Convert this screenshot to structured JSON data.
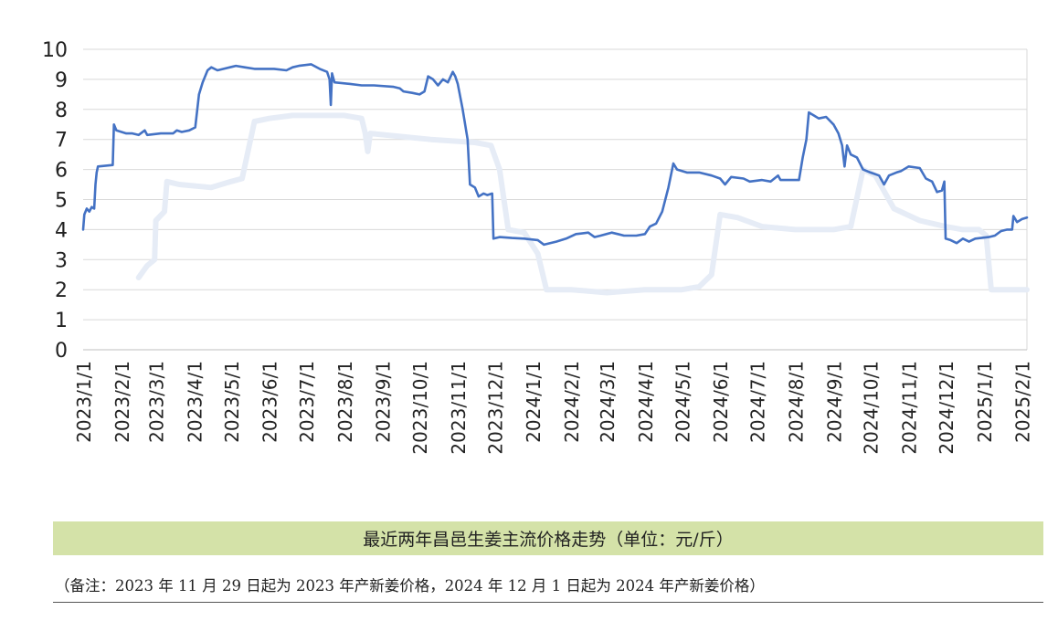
{
  "chart_data": {
    "type": "line",
    "title": "最近两年昌邑生姜主流价格走势（单位：元/斤）",
    "xlabel": "",
    "ylabel": "",
    "ylim": [
      0,
      10
    ],
    "yticks": [
      "0",
      "1",
      "2",
      "3",
      "4",
      "5",
      "6",
      "7",
      "8",
      "9",
      "10"
    ],
    "x_range": [
      "2023-01-01",
      "2025-02-05"
    ],
    "x_tick_labels": [
      "2023/1/1",
      "2023/2/1",
      "2023/3/1",
      "2023/4/1",
      "2023/5/1",
      "2023/6/1",
      "2023/7/1",
      "2023/8/1",
      "2023/9/1",
      "2023/10/1",
      "2023/11/1",
      "2023/12/1",
      "2024/1/1",
      "2024/2/1",
      "2024/3/1",
      "2024/4/1",
      "2024/5/1",
      "2024/6/1",
      "2024/7/1",
      "2024/8/1",
      "2024/9/1",
      "2024/10/1",
      "2024/11/1",
      "2024/12/1",
      "2025/1/1",
      "2025/2/1"
    ],
    "x_tick_dates": [
      "2023-01-01",
      "2023-02-01",
      "2023-03-01",
      "2023-04-01",
      "2023-05-01",
      "2023-06-01",
      "2023-07-01",
      "2023-08-01",
      "2023-09-01",
      "2023-10-01",
      "2023-11-01",
      "2023-12-01",
      "2024-01-01",
      "2024-02-01",
      "2024-03-01",
      "2024-04-01",
      "2024-05-01",
      "2024-06-01",
      "2024-07-01",
      "2024-08-01",
      "2024-09-01",
      "2024-10-01",
      "2024-11-01",
      "2024-12-01",
      "2025-01-01",
      "2025-02-01"
    ],
    "grid": true,
    "legend": "none",
    "colors": {
      "main": "#4472c4",
      "faded": "#e6ecf6",
      "grid": "#d9d9d9"
    },
    "series": [
      {
        "points": [
          [
            "2023-01-01",
            4.0
          ],
          [
            "2023-01-02",
            4.5
          ],
          [
            "2023-01-04",
            4.7
          ],
          [
            "2023-01-06",
            4.6
          ],
          [
            "2023-01-08",
            4.75
          ],
          [
            "2023-01-10",
            4.7
          ],
          [
            "2023-01-11",
            5.5
          ],
          [
            "2023-01-12",
            5.9
          ],
          [
            "2023-01-13",
            6.1
          ],
          [
            "2023-01-25",
            6.15
          ],
          [
            "2023-01-26",
            7.5
          ],
          [
            "2023-01-28",
            7.3
          ],
          [
            "2023-02-05",
            7.2
          ],
          [
            "2023-02-10",
            7.2
          ],
          [
            "2023-02-15",
            7.15
          ],
          [
            "2023-02-20",
            7.3
          ],
          [
            "2023-02-22",
            7.15
          ],
          [
            "2023-03-05",
            7.2
          ],
          [
            "2023-03-15",
            7.2
          ],
          [
            "2023-03-18",
            7.3
          ],
          [
            "2023-03-22",
            7.25
          ],
          [
            "2023-03-28",
            7.3
          ],
          [
            "2023-04-02",
            7.4
          ],
          [
            "2023-04-05",
            8.5
          ],
          [
            "2023-04-08",
            8.9
          ],
          [
            "2023-04-12",
            9.3
          ],
          [
            "2023-04-15",
            9.4
          ],
          [
            "2023-04-20",
            9.3
          ],
          [
            "2023-04-25",
            9.35
          ],
          [
            "2023-05-05",
            9.45
          ],
          [
            "2023-05-12",
            9.4
          ],
          [
            "2023-05-20",
            9.35
          ],
          [
            "2023-06-05",
            9.35
          ],
          [
            "2023-06-15",
            9.3
          ],
          [
            "2023-06-20",
            9.4
          ],
          [
            "2023-06-25",
            9.45
          ],
          [
            "2023-07-05",
            9.5
          ],
          [
            "2023-07-12",
            9.35
          ],
          [
            "2023-07-18",
            9.25
          ],
          [
            "2023-07-20",
            9.0
          ],
          [
            "2023-07-21",
            8.15
          ],
          [
            "2023-07-22",
            9.2
          ],
          [
            "2023-07-24",
            8.9
          ],
          [
            "2023-08-05",
            8.85
          ],
          [
            "2023-08-15",
            8.8
          ],
          [
            "2023-08-25",
            8.8
          ],
          [
            "2023-09-10",
            8.75
          ],
          [
            "2023-09-15",
            8.7
          ],
          [
            "2023-09-18",
            8.6
          ],
          [
            "2023-09-25",
            8.55
          ],
          [
            "2023-10-01",
            8.5
          ],
          [
            "2023-10-05",
            8.6
          ],
          [
            "2023-10-08",
            9.1
          ],
          [
            "2023-10-12",
            9.0
          ],
          [
            "2023-10-16",
            8.8
          ],
          [
            "2023-10-20",
            9.0
          ],
          [
            "2023-10-24",
            8.9
          ],
          [
            "2023-10-28",
            9.25
          ],
          [
            "2023-10-30",
            9.1
          ],
          [
            "2023-11-01",
            8.85
          ],
          [
            "2023-11-05",
            8.0
          ],
          [
            "2023-11-09",
            7.0
          ],
          [
            "2023-11-11",
            5.5
          ],
          [
            "2023-11-15",
            5.4
          ],
          [
            "2023-11-18",
            5.1
          ],
          [
            "2023-11-22",
            5.2
          ],
          [
            "2023-11-25",
            5.15
          ],
          [
            "2023-11-29",
            5.2
          ],
          [
            "2023-11-30",
            3.7
          ],
          [
            "2023-12-05",
            3.75
          ],
          [
            "2023-12-15",
            3.72
          ],
          [
            "2023-12-25",
            3.7
          ],
          [
            "2024-01-05",
            3.65
          ],
          [
            "2024-01-10",
            3.5
          ],
          [
            "2024-01-20",
            3.6
          ],
          [
            "2024-01-28",
            3.7
          ],
          [
            "2024-02-05",
            3.85
          ],
          [
            "2024-02-15",
            3.9
          ],
          [
            "2024-02-20",
            3.75
          ],
          [
            "2024-02-25",
            3.8
          ],
          [
            "2024-03-05",
            3.9
          ],
          [
            "2024-03-10",
            3.85
          ],
          [
            "2024-03-15",
            3.8
          ],
          [
            "2024-03-25",
            3.8
          ],
          [
            "2024-04-01",
            3.85
          ],
          [
            "2024-04-05",
            4.1
          ],
          [
            "2024-04-10",
            4.2
          ],
          [
            "2024-04-15",
            4.6
          ],
          [
            "2024-04-20",
            5.4
          ],
          [
            "2024-04-24",
            6.2
          ],
          [
            "2024-04-27",
            6.0
          ],
          [
            "2024-05-05",
            5.9
          ],
          [
            "2024-05-15",
            5.9
          ],
          [
            "2024-05-25",
            5.8
          ],
          [
            "2024-06-01",
            5.7
          ],
          [
            "2024-06-05",
            5.5
          ],
          [
            "2024-06-10",
            5.75
          ],
          [
            "2024-06-20",
            5.7
          ],
          [
            "2024-06-25",
            5.6
          ],
          [
            "2024-07-05",
            5.65
          ],
          [
            "2024-07-12",
            5.6
          ],
          [
            "2024-07-18",
            5.8
          ],
          [
            "2024-07-20",
            5.65
          ],
          [
            "2024-07-30",
            5.65
          ],
          [
            "2024-08-04",
            5.65
          ],
          [
            "2024-08-07",
            6.4
          ],
          [
            "2024-08-10",
            7.0
          ],
          [
            "2024-08-12",
            7.9
          ],
          [
            "2024-08-16",
            7.8
          ],
          [
            "2024-08-20",
            7.7
          ],
          [
            "2024-08-26",
            7.75
          ],
          [
            "2024-09-01",
            7.5
          ],
          [
            "2024-09-05",
            7.2
          ],
          [
            "2024-09-08",
            6.8
          ],
          [
            "2024-09-10",
            6.1
          ],
          [
            "2024-09-12",
            6.8
          ],
          [
            "2024-09-15",
            6.5
          ],
          [
            "2024-09-20",
            6.4
          ],
          [
            "2024-09-25",
            6.0
          ],
          [
            "2024-10-01",
            5.9
          ],
          [
            "2024-10-08",
            5.8
          ],
          [
            "2024-10-12",
            5.5
          ],
          [
            "2024-10-16",
            5.8
          ],
          [
            "2024-10-22",
            5.9
          ],
          [
            "2024-10-26",
            5.95
          ],
          [
            "2024-11-01",
            6.1
          ],
          [
            "2024-11-10",
            6.05
          ],
          [
            "2024-11-15",
            5.7
          ],
          [
            "2024-11-20",
            5.6
          ],
          [
            "2024-11-24",
            5.25
          ],
          [
            "2024-11-28",
            5.3
          ],
          [
            "2024-11-30",
            5.6
          ],
          [
            "2024-12-01",
            3.7
          ],
          [
            "2024-12-05",
            3.65
          ],
          [
            "2024-12-10",
            3.55
          ],
          [
            "2024-12-15",
            3.7
          ],
          [
            "2024-12-20",
            3.6
          ],
          [
            "2024-12-25",
            3.7
          ],
          [
            "2025-01-05",
            3.75
          ],
          [
            "2025-01-10",
            3.8
          ],
          [
            "2025-01-15",
            3.95
          ],
          [
            "2025-01-20",
            4.0
          ],
          [
            "2025-01-24",
            4.0
          ],
          [
            "2025-01-25",
            4.45
          ],
          [
            "2025-01-28",
            4.25
          ],
          [
            "2025-02-01",
            4.35
          ],
          [
            "2025-02-05",
            4.4
          ]
        ]
      },
      {
        "faded": true,
        "points": [
          [
            "2023-02-15",
            2.4
          ],
          [
            "2023-02-22",
            2.8
          ],
          [
            "2023-02-28",
            3.0
          ],
          [
            "2023-03-01",
            4.3
          ],
          [
            "2023-03-08",
            4.6
          ],
          [
            "2023-03-10",
            5.6
          ],
          [
            "2023-03-20",
            5.5
          ],
          [
            "2023-04-15",
            5.4
          ],
          [
            "2023-05-01",
            5.6
          ],
          [
            "2023-05-10",
            5.7
          ],
          [
            "2023-05-20",
            7.6
          ],
          [
            "2023-06-01",
            7.7
          ],
          [
            "2023-06-20",
            7.8
          ],
          [
            "2023-07-10",
            7.8
          ],
          [
            "2023-08-01",
            7.8
          ],
          [
            "2023-08-15",
            7.7
          ],
          [
            "2023-08-18",
            7.2
          ],
          [
            "2023-08-20",
            6.6
          ],
          [
            "2023-08-22",
            7.2
          ],
          [
            "2023-09-15",
            7.1
          ],
          [
            "2023-10-10",
            7.0
          ],
          [
            "2023-11-15",
            6.9
          ],
          [
            "2023-11-28",
            6.8
          ],
          [
            "2023-12-05",
            6.0
          ],
          [
            "2023-12-12",
            4.0
          ],
          [
            "2023-12-25",
            3.9
          ],
          [
            "2024-01-05",
            3.2
          ],
          [
            "2024-01-12",
            2.0
          ],
          [
            "2024-02-01",
            2.0
          ],
          [
            "2024-03-01",
            1.9
          ],
          [
            "2024-04-01",
            2.0
          ],
          [
            "2024-05-01",
            2.0
          ],
          [
            "2024-05-15",
            2.1
          ],
          [
            "2024-05-25",
            2.5
          ],
          [
            "2024-06-01",
            4.5
          ],
          [
            "2024-06-15",
            4.4
          ],
          [
            "2024-07-05",
            4.1
          ],
          [
            "2024-08-01",
            4.0
          ],
          [
            "2024-09-01",
            4.0
          ],
          [
            "2024-09-15",
            4.1
          ],
          [
            "2024-09-25",
            6.0
          ],
          [
            "2024-10-05",
            5.8
          ],
          [
            "2024-10-20",
            4.7
          ],
          [
            "2024-11-10",
            4.3
          ],
          [
            "2024-12-01",
            4.1
          ],
          [
            "2024-12-15",
            4.0
          ],
          [
            "2024-12-28",
            4.0
          ],
          [
            "2025-01-03",
            3.8
          ],
          [
            "2025-01-07",
            2.0
          ],
          [
            "2025-02-05",
            2.0
          ]
        ]
      }
    ]
  },
  "caption": "最近两年昌邑生姜主流价格走势（单位：元/斤）",
  "note": "（备注：2023 年 11 月 29 日起为 2023 年产新姜价格，2024 年 12 月 1 日起为 2024 年产新姜价格）"
}
